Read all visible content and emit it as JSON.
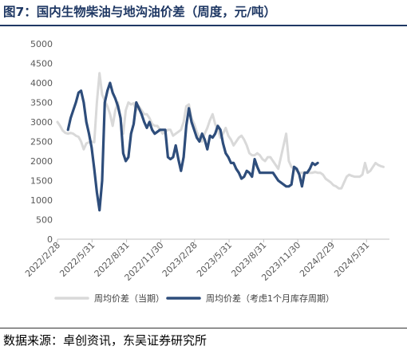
{
  "title": "图7：国内生物柴油与地沟油价差（周度，元/吨）",
  "source": "数据来源：卓创资讯，东吴证券研究所",
  "chart_data": {
    "type": "line",
    "title": "图7：国内生物柴油与地沟油价差（周度，元/吨）",
    "xlabel": "",
    "ylabel": "",
    "ylim": [
      0,
      5000
    ],
    "yticks": [
      0,
      500,
      1000,
      1500,
      2000,
      2500,
      3000,
      3500,
      4000,
      4500,
      5000
    ],
    "xlim": [
      "2022-02-28",
      "2024-07-31"
    ],
    "xticks": [
      "2022/2/28",
      "2022/5/31",
      "2022/8/31",
      "2022/11/30",
      "2023/2/28",
      "2023/5/31",
      "2023/8/31",
      "2023/11/30",
      "2024/2/29",
      "2024/5/31"
    ],
    "grid": false,
    "legend_position": "bottom",
    "series": [
      {
        "name": "周均价差（当期）",
        "color": "#d9d9d9",
        "points": [
          [
            "2022-02-28",
            3000
          ],
          [
            "2022-03-07",
            2900
          ],
          [
            "2022-03-14",
            2780
          ],
          [
            "2022-03-21",
            2720
          ],
          [
            "2022-03-28",
            2700
          ],
          [
            "2022-04-04",
            2720
          ],
          [
            "2022-04-11",
            2700
          ],
          [
            "2022-04-18",
            2650
          ],
          [
            "2022-04-25",
            2620
          ],
          [
            "2022-05-02",
            2500
          ],
          [
            "2022-05-09",
            2300
          ],
          [
            "2022-05-16",
            2450
          ],
          [
            "2022-05-23",
            2480
          ],
          [
            "2022-05-30",
            2500
          ],
          [
            "2022-06-06",
            2480
          ],
          [
            "2022-06-13",
            3500
          ],
          [
            "2022-06-20",
            4250
          ],
          [
            "2022-06-27",
            3700
          ],
          [
            "2022-07-04",
            3550
          ],
          [
            "2022-07-11",
            3400
          ],
          [
            "2022-07-18",
            3200
          ],
          [
            "2022-07-25",
            2900
          ],
          [
            "2022-08-01",
            3300
          ],
          [
            "2022-08-08",
            3500
          ],
          [
            "2022-08-15",
            3050
          ],
          [
            "2022-08-22",
            2700
          ],
          [
            "2022-08-29",
            3300
          ],
          [
            "2022-09-05",
            3500
          ],
          [
            "2022-09-12",
            3450
          ],
          [
            "2022-09-19",
            3480
          ],
          [
            "2022-09-26",
            3300
          ],
          [
            "2022-10-03",
            3400
          ],
          [
            "2022-10-10",
            3300
          ],
          [
            "2022-10-17",
            3200
          ],
          [
            "2022-10-24",
            3200
          ],
          [
            "2022-10-31",
            3100
          ],
          [
            "2022-11-07",
            2950
          ],
          [
            "2022-11-14",
            2900
          ],
          [
            "2022-11-21",
            2900
          ],
          [
            "2022-11-28",
            2800
          ],
          [
            "2022-12-05",
            2700
          ],
          [
            "2022-12-12",
            2750
          ],
          [
            "2022-12-19",
            2800
          ],
          [
            "2022-12-26",
            2800
          ],
          [
            "2023-01-02",
            2650
          ],
          [
            "2023-01-09",
            2700
          ],
          [
            "2023-01-16",
            2750
          ],
          [
            "2023-01-23",
            2800
          ],
          [
            "2023-01-30",
            3000
          ],
          [
            "2023-02-06",
            3400
          ],
          [
            "2023-02-13",
            3450
          ],
          [
            "2023-02-20",
            3100
          ],
          [
            "2023-02-27",
            2950
          ],
          [
            "2023-03-06",
            2750
          ],
          [
            "2023-03-13",
            2600
          ],
          [
            "2023-03-20",
            2500
          ],
          [
            "2023-03-27",
            2700
          ],
          [
            "2023-04-03",
            2850
          ],
          [
            "2023-04-10",
            3050
          ],
          [
            "2023-04-17",
            3200
          ],
          [
            "2023-04-24",
            2950
          ],
          [
            "2023-05-01",
            2800
          ],
          [
            "2023-05-08",
            2600
          ],
          [
            "2023-05-15",
            2700
          ],
          [
            "2023-05-22",
            2850
          ],
          [
            "2023-05-29",
            2650
          ],
          [
            "2023-06-05",
            2550
          ],
          [
            "2023-06-12",
            2400
          ],
          [
            "2023-06-19",
            2500
          ],
          [
            "2023-06-26",
            2600
          ],
          [
            "2023-07-03",
            2650
          ],
          [
            "2023-07-10",
            2550
          ],
          [
            "2023-07-17",
            2400
          ],
          [
            "2023-07-24",
            2200
          ],
          [
            "2023-07-31",
            2150
          ],
          [
            "2023-08-07",
            2150
          ],
          [
            "2023-08-14",
            2200
          ],
          [
            "2023-08-21",
            2150
          ],
          [
            "2023-08-28",
            2050
          ],
          [
            "2023-09-04",
            2000
          ],
          [
            "2023-09-11",
            2100
          ],
          [
            "2023-09-18",
            2100
          ],
          [
            "2023-09-25",
            2000
          ],
          [
            "2023-10-02",
            1900
          ],
          [
            "2023-10-09",
            1800
          ],
          [
            "2023-10-16",
            2100
          ],
          [
            "2023-10-23",
            2400
          ],
          [
            "2023-10-30",
            2700
          ],
          [
            "2023-11-06",
            2000
          ],
          [
            "2023-11-13",
            1850
          ],
          [
            "2023-11-20",
            1800
          ],
          [
            "2023-11-27",
            1750
          ],
          [
            "2023-12-04",
            1700
          ],
          [
            "2023-12-11",
            1700
          ],
          [
            "2023-12-18",
            1720
          ],
          [
            "2023-12-25",
            1700
          ],
          [
            "2024-01-01",
            1700
          ],
          [
            "2024-01-08",
            1700
          ],
          [
            "2024-01-15",
            1720
          ],
          [
            "2024-01-22",
            1700
          ],
          [
            "2024-01-29",
            1700
          ],
          [
            "2024-02-05",
            1650
          ],
          [
            "2024-02-12",
            1550
          ],
          [
            "2024-02-19",
            1500
          ],
          [
            "2024-02-26",
            1450
          ],
          [
            "2024-03-04",
            1380
          ],
          [
            "2024-03-11",
            1350
          ],
          [
            "2024-03-18",
            1300
          ],
          [
            "2024-03-25",
            1300
          ],
          [
            "2024-04-01",
            1450
          ],
          [
            "2024-04-08",
            1600
          ],
          [
            "2024-04-15",
            1650
          ],
          [
            "2024-04-22",
            1620
          ],
          [
            "2024-04-29",
            1600
          ],
          [
            "2024-05-06",
            1600
          ],
          [
            "2024-05-13",
            1600
          ],
          [
            "2024-05-20",
            1650
          ],
          [
            "2024-05-27",
            1950
          ],
          [
            "2024-06-03",
            1700
          ],
          [
            "2024-06-10",
            1750
          ],
          [
            "2024-06-17",
            1850
          ],
          [
            "2024-06-24",
            1950
          ],
          [
            "2024-07-01",
            1900
          ],
          [
            "2024-07-08",
            1870
          ],
          [
            "2024-07-15",
            1850
          ]
        ]
      },
      {
        "name": "周均价差（考虑1个月库存周期）",
        "color": "#2e4d7b",
        "points": [
          [
            "2022-03-28",
            2800
          ],
          [
            "2022-04-04",
            3100
          ],
          [
            "2022-04-11",
            3300
          ],
          [
            "2022-04-18",
            3500
          ],
          [
            "2022-04-25",
            3750
          ],
          [
            "2022-05-02",
            3800
          ],
          [
            "2022-05-09",
            3500
          ],
          [
            "2022-05-16",
            3000
          ],
          [
            "2022-05-23",
            2700
          ],
          [
            "2022-05-30",
            2350
          ],
          [
            "2022-06-06",
            1800
          ],
          [
            "2022-06-13",
            1200
          ],
          [
            "2022-06-20",
            740
          ],
          [
            "2022-06-27",
            1500
          ],
          [
            "2022-07-04",
            3500
          ],
          [
            "2022-07-11",
            3800
          ],
          [
            "2022-07-18",
            4000
          ],
          [
            "2022-07-25",
            3750
          ],
          [
            "2022-08-01",
            3600
          ],
          [
            "2022-08-08",
            3400
          ],
          [
            "2022-08-15",
            3100
          ],
          [
            "2022-08-22",
            2200
          ],
          [
            "2022-08-29",
            2000
          ],
          [
            "2022-09-05",
            2100
          ],
          [
            "2022-09-12",
            2700
          ],
          [
            "2022-09-19",
            2950
          ],
          [
            "2022-09-26",
            3500
          ],
          [
            "2022-10-03",
            3350
          ],
          [
            "2022-10-10",
            3200
          ],
          [
            "2022-10-17",
            3000
          ],
          [
            "2022-10-24",
            2850
          ],
          [
            "2022-10-31",
            3000
          ],
          [
            "2022-11-07",
            2800
          ],
          [
            "2022-11-14",
            2700
          ],
          [
            "2022-11-21",
            2750
          ],
          [
            "2022-11-28",
            2800
          ],
          [
            "2022-12-05",
            2800
          ],
          [
            "2022-12-12",
            2800
          ],
          [
            "2022-12-19",
            2100
          ],
          [
            "2022-12-26",
            2050
          ],
          [
            "2023-01-02",
            2100
          ],
          [
            "2023-01-09",
            2400
          ],
          [
            "2023-01-16",
            2050
          ],
          [
            "2023-01-23",
            1750
          ],
          [
            "2023-01-30",
            2100
          ],
          [
            "2023-02-06",
            2900
          ],
          [
            "2023-02-13",
            3350
          ],
          [
            "2023-02-20",
            3000
          ],
          [
            "2023-02-27",
            2800
          ],
          [
            "2023-03-06",
            2600
          ],
          [
            "2023-03-13",
            2500
          ],
          [
            "2023-03-20",
            2700
          ],
          [
            "2023-03-27",
            2550
          ],
          [
            "2023-04-03",
            2300
          ],
          [
            "2023-04-10",
            2650
          ],
          [
            "2023-04-17",
            2600
          ],
          [
            "2023-04-24",
            2700
          ],
          [
            "2023-05-01",
            2900
          ],
          [
            "2023-05-08",
            2800
          ],
          [
            "2023-05-15",
            2450
          ],
          [
            "2023-05-22",
            2200
          ],
          [
            "2023-05-29",
            2100
          ],
          [
            "2023-06-05",
            1950
          ],
          [
            "2023-06-12",
            1950
          ],
          [
            "2023-06-19",
            1800
          ],
          [
            "2023-06-26",
            1700
          ],
          [
            "2023-07-03",
            1550
          ],
          [
            "2023-07-10",
            1600
          ],
          [
            "2023-07-17",
            1750
          ],
          [
            "2023-07-24",
            1700
          ],
          [
            "2023-07-31",
            1600
          ],
          [
            "2023-08-07",
            2050
          ],
          [
            "2023-08-14",
            1850
          ],
          [
            "2023-08-21",
            1700
          ],
          [
            "2023-08-28",
            1700
          ],
          [
            "2023-09-04",
            1700
          ],
          [
            "2023-09-11",
            1700
          ],
          [
            "2023-09-18",
            1700
          ],
          [
            "2023-09-25",
            1700
          ],
          [
            "2023-10-02",
            1600
          ],
          [
            "2023-10-09",
            1500
          ],
          [
            "2023-10-16",
            1450
          ],
          [
            "2023-10-23",
            1400
          ],
          [
            "2023-10-30",
            1350
          ],
          [
            "2023-11-06",
            1350
          ],
          [
            "2023-11-13",
            1400
          ],
          [
            "2023-11-20",
            1850
          ],
          [
            "2023-11-27",
            1800
          ],
          [
            "2023-12-04",
            1650
          ],
          [
            "2023-12-11",
            1350
          ],
          [
            "2023-12-18",
            1700
          ],
          [
            "2023-12-25",
            1700
          ],
          [
            "2024-01-01",
            1800
          ],
          [
            "2024-01-08",
            1950
          ],
          [
            "2024-01-15",
            1900
          ],
          [
            "2024-01-22",
            1950
          ]
        ]
      }
    ]
  }
}
